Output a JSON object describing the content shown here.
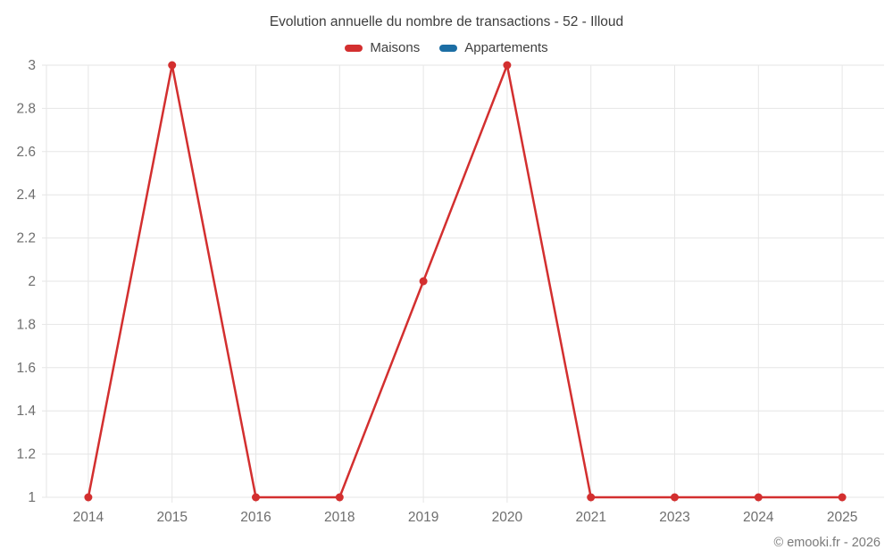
{
  "title": "Evolution annuelle du nombre de transactions - 52 - Illoud",
  "copyright": "© emooki.fr - 2026",
  "colors": {
    "maisons": "#d32f2f",
    "appartements": "#1c6ea4",
    "grid": "#e6e6e6",
    "tick_text": "#6e6e6e"
  },
  "legend": [
    {
      "label": "Maisons",
      "color": "#d32f2f"
    },
    {
      "label": "Appartements",
      "color": "#1c6ea4"
    }
  ],
  "chart_data": {
    "type": "line",
    "title": "Evolution annuelle du nombre de transactions - 52 - Illoud",
    "categories": [
      "2014",
      "2015",
      "2016",
      "2018",
      "2019",
      "2020",
      "2021",
      "2023",
      "2024",
      "2025"
    ],
    "series": [
      {
        "name": "Maisons",
        "color": "#d32f2f",
        "values": [
          1,
          3,
          1,
          1,
          2,
          3,
          1,
          1,
          1,
          1
        ]
      },
      {
        "name": "Appartements",
        "color": "#1c6ea4",
        "values": []
      }
    ],
    "xlabel": "",
    "ylabel": "",
    "ylim": [
      1,
      3
    ],
    "ytick_step": 0.2,
    "grid": true,
    "legend_position": "top",
    "marker": "circle"
  }
}
